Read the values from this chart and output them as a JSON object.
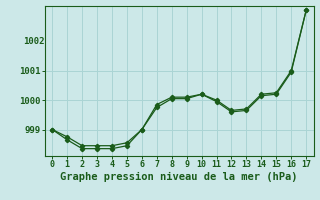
{
  "x": [
    0,
    1,
    2,
    3,
    4,
    5,
    6,
    7,
    8,
    9,
    10,
    11,
    12,
    13,
    14,
    15,
    16,
    17
  ],
  "line1": [
    999.0,
    998.75,
    998.45,
    998.45,
    998.45,
    998.55,
    999.0,
    999.85,
    1000.1,
    1000.1,
    1000.2,
    1000.0,
    999.65,
    999.7,
    1000.2,
    1000.25,
    1001.0,
    1003.05
  ],
  "line2": [
    999.0,
    998.65,
    998.35,
    998.35,
    998.35,
    998.45,
    999.0,
    999.75,
    1000.05,
    1000.05,
    1000.2,
    999.95,
    999.6,
    999.65,
    1000.15,
    1000.2,
    1000.95,
    1003.05
  ],
  "line_color": "#1a5c1a",
  "bg_color": "#cce8e8",
  "grid_color": "#aad4d4",
  "ylabel_values": [
    999,
    1000,
    1001
  ],
  "ytop_label": "1002",
  "xlabel_label": "Graphe pression niveau de la mer (hPa)",
  "ylim": [
    998.1,
    1003.2
  ],
  "xlim": [
    -0.5,
    17.5
  ],
  "xlabel_fontsize": 7.5,
  "tick_fontsize": 6.5
}
